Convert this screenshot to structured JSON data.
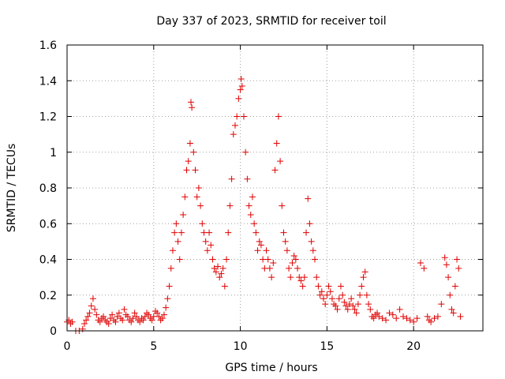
{
  "chart_data": {
    "type": "scatter",
    "title": "Day 337 of 2023, SRMTID for receiver toil",
    "xlabel": "GPS time / hours",
    "ylabel": "SRMTID / TECUs",
    "xlim": [
      0,
      24
    ],
    "ylim": [
      0,
      1.6
    ],
    "xticks": [
      0,
      5,
      10,
      15,
      20
    ],
    "xtick_labels": [
      "0",
      "5",
      "10",
      "15",
      "20"
    ],
    "yticks": [
      0,
      0.2,
      0.4,
      0.6,
      0.8,
      1,
      1.2,
      1.4,
      1.6
    ],
    "ytick_labels": [
      "0",
      "0.2",
      "0.4",
      "0.6",
      "0.8",
      "1",
      "1.2",
      "1.4",
      "1.6"
    ],
    "grid": true,
    "marker": "+",
    "marker_color": "#e00000",
    "series": [
      {
        "name": "SRMTID",
        "x": [
          0.0,
          0.1,
          0.2,
          0.3,
          0.5,
          0.7,
          0.9,
          1.0,
          1.1,
          1.2,
          1.3,
          1.4,
          1.5,
          1.6,
          1.7,
          1.8,
          1.9,
          2.0,
          2.1,
          2.2,
          2.3,
          2.4,
          2.5,
          2.6,
          2.7,
          2.8,
          2.9,
          3.0,
          3.1,
          3.2,
          3.3,
          3.4,
          3.5,
          3.6,
          3.7,
          3.8,
          3.9,
          4.0,
          4.1,
          4.2,
          4.3,
          4.4,
          4.5,
          4.6,
          4.7,
          4.8,
          4.9,
          5.0,
          5.1,
          5.2,
          5.3,
          5.4,
          5.5,
          5.6,
          5.7,
          5.8,
          5.9,
          6.0,
          6.1,
          6.2,
          6.3,
          6.4,
          6.5,
          6.6,
          6.7,
          6.8,
          6.9,
          7.0,
          7.1,
          7.15,
          7.2,
          7.3,
          7.4,
          7.5,
          7.6,
          7.7,
          7.8,
          7.9,
          8.0,
          8.1,
          8.2,
          8.3,
          8.4,
          8.5,
          8.6,
          8.7,
          8.8,
          8.9,
          9.0,
          9.1,
          9.2,
          9.3,
          9.4,
          9.5,
          9.6,
          9.7,
          9.8,
          9.9,
          10.0,
          10.05,
          10.1,
          10.2,
          10.3,
          10.4,
          10.5,
          10.6,
          10.7,
          10.8,
          10.9,
          11.0,
          11.1,
          11.2,
          11.3,
          11.4,
          11.5,
          11.6,
          11.7,
          11.8,
          11.9,
          12.0,
          12.1,
          12.2,
          12.3,
          12.4,
          12.5,
          12.6,
          12.7,
          12.8,
          12.9,
          13.0,
          13.1,
          13.2,
          13.3,
          13.4,
          13.5,
          13.6,
          13.7,
          13.8,
          13.9,
          14.0,
          14.1,
          14.2,
          14.3,
          14.4,
          14.5,
          14.6,
          14.7,
          14.8,
          14.9,
          15.0,
          15.1,
          15.2,
          15.3,
          15.4,
          15.5,
          15.6,
          15.7,
          15.8,
          15.9,
          16.0,
          16.1,
          16.2,
          16.3,
          16.4,
          16.5,
          16.6,
          16.7,
          16.8,
          16.9,
          17.0,
          17.1,
          17.2,
          17.3,
          17.4,
          17.5,
          17.6,
          17.7,
          17.8,
          17.9,
          18.0,
          18.2,
          18.4,
          18.6,
          18.8,
          19.0,
          19.2,
          19.4,
          19.6,
          19.8,
          20.0,
          20.2,
          20.4,
          20.6,
          20.8,
          20.9,
          21.0,
          21.2,
          21.4,
          21.6,
          21.8,
          21.9,
          22.0,
          22.1,
          22.2,
          22.3,
          22.4,
          22.5,
          22.6,
          22.7
        ],
        "y": [
          0.05,
          0.06,
          0.04,
          0.05,
          0.0,
          0.0,
          0.01,
          0.04,
          0.06,
          0.08,
          0.1,
          0.14,
          0.18,
          0.12,
          0.09,
          0.06,
          0.05,
          0.07,
          0.08,
          0.06,
          0.05,
          0.04,
          0.07,
          0.09,
          0.06,
          0.05,
          0.08,
          0.1,
          0.07,
          0.06,
          0.12,
          0.09,
          0.08,
          0.06,
          0.05,
          0.07,
          0.1,
          0.08,
          0.06,
          0.05,
          0.07,
          0.06,
          0.08,
          0.1,
          0.09,
          0.07,
          0.06,
          0.08,
          0.11,
          0.1,
          0.08,
          0.06,
          0.07,
          0.09,
          0.13,
          0.18,
          0.25,
          0.35,
          0.45,
          0.55,
          0.6,
          0.5,
          0.4,
          0.55,
          0.65,
          0.75,
          0.9,
          0.95,
          1.05,
          1.28,
          1.25,
          1.0,
          0.9,
          0.75,
          0.8,
          0.7,
          0.6,
          0.55,
          0.5,
          0.45,
          0.55,
          0.48,
          0.4,
          0.35,
          0.33,
          0.36,
          0.3,
          0.32,
          0.35,
          0.25,
          0.4,
          0.55,
          0.7,
          0.85,
          1.1,
          1.15,
          1.2,
          1.3,
          1.35,
          1.41,
          1.37,
          1.2,
          1.0,
          0.85,
          0.7,
          0.65,
          0.75,
          0.6,
          0.55,
          0.45,
          0.5,
          0.48,
          0.4,
          0.35,
          0.45,
          0.4,
          0.35,
          0.3,
          0.38,
          0.9,
          1.05,
          1.2,
          0.95,
          0.7,
          0.55,
          0.5,
          0.45,
          0.35,
          0.3,
          0.38,
          0.42,
          0.4,
          0.35,
          0.3,
          0.28,
          0.25,
          0.3,
          0.55,
          0.74,
          0.6,
          0.5,
          0.45,
          0.4,
          0.3,
          0.25,
          0.2,
          0.22,
          0.18,
          0.15,
          0.2,
          0.25,
          0.22,
          0.18,
          0.15,
          0.14,
          0.12,
          0.18,
          0.25,
          0.2,
          0.16,
          0.14,
          0.12,
          0.15,
          0.18,
          0.14,
          0.12,
          0.1,
          0.15,
          0.2,
          0.25,
          0.3,
          0.33,
          0.2,
          0.15,
          0.12,
          0.08,
          0.07,
          0.09,
          0.1,
          0.08,
          0.07,
          0.06,
          0.1,
          0.09,
          0.07,
          0.12,
          0.08,
          0.07,
          0.06,
          0.05,
          0.07,
          0.38,
          0.35,
          0.08,
          0.06,
          0.05,
          0.07,
          0.08,
          0.15,
          0.41,
          0.37,
          0.3,
          0.2,
          0.12,
          0.1,
          0.25,
          0.4,
          0.35,
          0.08
        ]
      }
    ]
  }
}
